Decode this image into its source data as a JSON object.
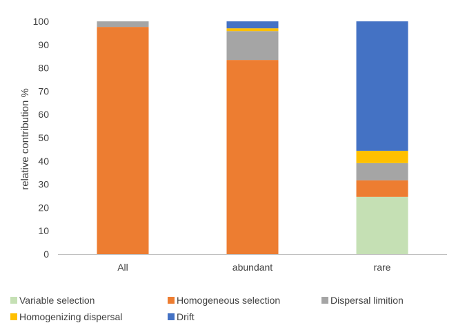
{
  "chart_data": {
    "type": "bar",
    "stacked": true,
    "categories": [
      "All",
      "abundant",
      "rare"
    ],
    "ylabel": "relative contribution %",
    "xlabel": "",
    "ylim": [
      0,
      100
    ],
    "yticks": [
      0,
      10,
      20,
      30,
      40,
      50,
      60,
      70,
      80,
      90,
      100
    ],
    "grid": false,
    "legend_position": "bottom",
    "series": [
      {
        "name": "Variable selection",
        "color": "#c5e0b4",
        "values": [
          0,
          0,
          24.6
        ]
      },
      {
        "name": "Homogeneous selection",
        "color": "#ed7d31",
        "values": [
          97.6,
          83.4,
          7.1
        ]
      },
      {
        "name": "Dispersal limition",
        "color": "#a5a5a5",
        "values": [
          2.4,
          12.4,
          7.4
        ]
      },
      {
        "name": "Homogenizing dispersal",
        "color": "#ffc000",
        "values": [
          0,
          1.2,
          5.3
        ]
      },
      {
        "name": "Drift",
        "color": "#4472c4",
        "values": [
          0,
          3.0,
          55.6
        ]
      }
    ]
  }
}
